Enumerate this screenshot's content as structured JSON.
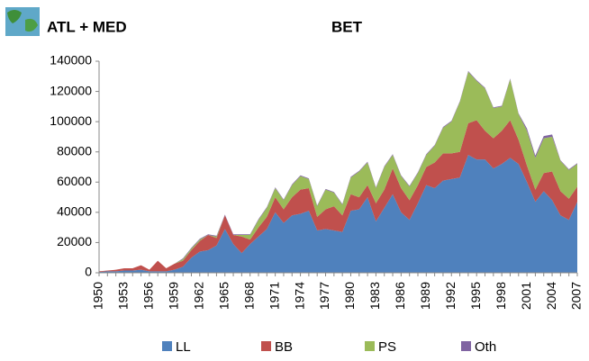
{
  "chart_data": {
    "type": "stacked_area",
    "title": "ATL + MED",
    "subtitle": "BET",
    "categories": [
      "1950",
      null,
      null,
      "1953",
      null,
      null,
      "1956",
      null,
      null,
      "1959",
      null,
      null,
      "1962",
      null,
      null,
      "1965",
      null,
      null,
      "1968",
      null,
      null,
      "1971",
      null,
      null,
      "1974",
      null,
      null,
      "1977",
      null,
      null,
      "1980",
      null,
      null,
      "1983",
      null,
      null,
      "1986",
      null,
      null,
      "1989",
      null,
      null,
      "1992",
      null,
      null,
      "1995",
      null,
      null,
      "1998",
      null,
      null,
      "2001",
      null,
      null,
      "2004",
      null,
      null,
      "2007"
    ],
    "series": [
      {
        "name": "LL",
        "color": "#4f81bd",
        "values": [
          500,
          1000,
          1000,
          1500,
          1500,
          2000,
          1000,
          1000,
          1000,
          2000,
          4000,
          10000,
          14000,
          15000,
          18000,
          29000,
          19000,
          13000,
          19000,
          24000,
          29000,
          40000,
          33000,
          38000,
          39000,
          41000,
          28000,
          29000,
          28000,
          27000,
          41000,
          42000,
          50000,
          34000,
          43000,
          52000,
          40000,
          35000,
          46000,
          58000,
          56000,
          61000,
          62000,
          63000,
          78000,
          75000,
          75000,
          69000,
          72000,
          76000,
          72000,
          60000,
          47000,
          54000,
          48000,
          38000,
          35000,
          47000
        ]
      },
      {
        "name": "BB",
        "color": "#c0504d",
        "values": [
          500,
          500,
          1000,
          1500,
          1500,
          3000,
          1000,
          7000,
          2000,
          4000,
          4000,
          5000,
          7000,
          10000,
          5000,
          9000,
          6000,
          11000,
          3000,
          6000,
          8000,
          10000,
          9000,
          12000,
          16000,
          15000,
          9000,
          13000,
          16000,
          11000,
          11000,
          8000,
          8000,
          12000,
          12000,
          17000,
          16000,
          13000,
          12000,
          12000,
          17000,
          18000,
          17000,
          17000,
          21000,
          26000,
          19000,
          20000,
          22000,
          25000,
          16000,
          11000,
          8000,
          12000,
          19000,
          16000,
          14000,
          10000
        ]
      },
      {
        "name": "PS",
        "color": "#9bbb59",
        "values": [
          0,
          0,
          0,
          0,
          0,
          0,
          0,
          0,
          0,
          0,
          1000,
          1000,
          1000,
          0,
          1000,
          0,
          0,
          1000,
          3000,
          5000,
          6000,
          6000,
          6000,
          8000,
          9000,
          6000,
          7000,
          13000,
          9000,
          7000,
          11000,
          17000,
          15000,
          10000,
          15000,
          9000,
          8000,
          9000,
          8000,
          8000,
          11000,
          17000,
          21000,
          33000,
          34000,
          26000,
          28000,
          20000,
          16000,
          27000,
          17000,
          23000,
          21000,
          23000,
          23000,
          20000,
          19000,
          15000
        ]
      },
      {
        "name": "Oth",
        "color": "#8064a2",
        "values": [
          0,
          0,
          0,
          0,
          0,
          0,
          0,
          0,
          0,
          0,
          500,
          500,
          500,
          500,
          500,
          500,
          500,
          500,
          500,
          500,
          500,
          500,
          500,
          500,
          500,
          500,
          500,
          500,
          500,
          500,
          500,
          500,
          500,
          500,
          500,
          500,
          500,
          500,
          500,
          500,
          500,
          500,
          500,
          500,
          500,
          500,
          500,
          500,
          500,
          500,
          500,
          1500,
          1500,
          1500,
          1500,
          500,
          500,
          500
        ]
      }
    ],
    "ylim": [
      0,
      140000
    ],
    "yticks": [
      0,
      20000,
      40000,
      60000,
      80000,
      100000,
      120000,
      140000
    ],
    "legend": "bottom"
  }
}
